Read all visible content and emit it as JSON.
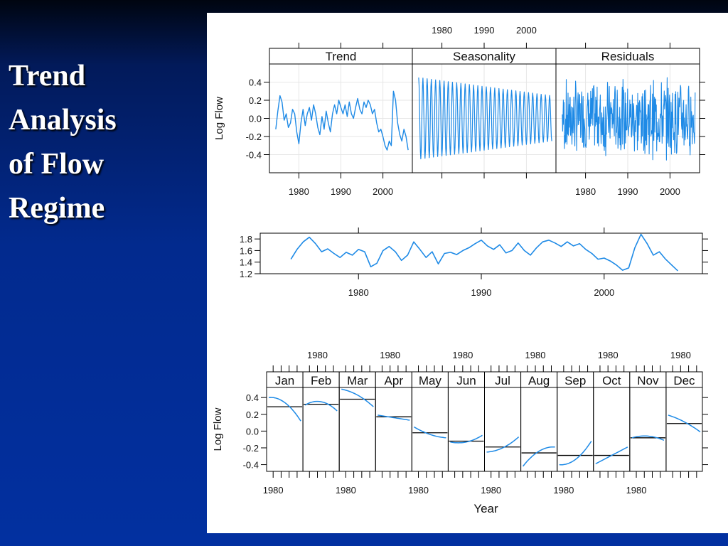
{
  "slide": {
    "title_lines": [
      "Trend",
      "Analysis",
      "of  Flow",
      "Regime"
    ]
  },
  "colors": {
    "series": "#1e8ae6",
    "panel_border": "#000000",
    "strip_bg": "#ffffff",
    "grid": "#e6e6e6",
    "slide_bg": "#0230a0"
  },
  "chart_data": [
    {
      "type": "line",
      "panels": [
        "Trend",
        "Seasonality",
        "Residuals"
      ],
      "ylabel": "Log Flow",
      "yticks": [
        "0.4",
        "0.2",
        "0.0",
        "-0.2",
        "-0.4"
      ],
      "ylim": [
        -0.6,
        0.6
      ],
      "xlim": [
        1973,
        2007
      ],
      "xticks": [
        "1980",
        "1990",
        "2000"
      ],
      "grid": true,
      "series": [
        {
          "panel": "Trend",
          "x": [
            1974.5,
            1975,
            1975.5,
            1976,
            1976.5,
            1977,
            1977.5,
            1978,
            1978.5,
            1979,
            1979.5,
            1980,
            1980.5,
            1981,
            1981.5,
            1982,
            1982.5,
            1983,
            1983.5,
            1984,
            1984.5,
            1985,
            1985.5,
            1986,
            1986.5,
            1987,
            1987.5,
            1988,
            1988.5,
            1989,
            1989.5,
            1990,
            1990.5,
            1991,
            1991.5,
            1992,
            1992.5,
            1993,
            1993.5,
            1994,
            1994.5,
            1995,
            1995.5,
            1996,
            1996.5,
            1997,
            1997.5,
            1998,
            1998.5,
            1999,
            1999.5,
            2000,
            2000.5,
            2001,
            2001.5,
            2002,
            2002.5,
            2003,
            2003.5,
            2004,
            2004.5,
            2005,
            2005.5,
            2006
          ],
          "values": [
            -0.12,
            0.08,
            0.25,
            0.18,
            -0.02,
            0.05,
            -0.1,
            -0.05,
            0.1,
            0.05,
            -0.15,
            -0.28,
            -0.05,
            0.1,
            -0.08,
            0.05,
            0.12,
            -0.02,
            0.15,
            0.05,
            -0.1,
            -0.18,
            0.02,
            -0.12,
            0.08,
            -0.05,
            -0.15,
            0.05,
            0.15,
            0.05,
            0.2,
            0.12,
            0.05,
            0.15,
            0.02,
            0.18,
            0.05,
            0.0,
            0.12,
            0.22,
            0.1,
            0.05,
            0.18,
            0.12,
            0.2,
            0.15,
            0.05,
            0.1,
            -0.05,
            -0.15,
            -0.12,
            -0.2,
            -0.3,
            -0.35,
            -0.25,
            -0.3,
            0.3,
            0.2,
            -0.05,
            -0.18,
            -0.25,
            -0.12,
            -0.2,
            -0.35
          ]
        },
        {
          "panel": "Seasonality",
          "x": [
            1974.5,
            2006
          ],
          "values": [
            0.45,
            -0.42
          ],
          "note": "annual oscillation, amplitude shrinking from about 0.45 to 0.25"
        },
        {
          "panel": "Residuals",
          "x": [
            1974.5,
            2006
          ],
          "values": [
            0.5,
            -0.55
          ],
          "note": "noisy residual series within about +/-0.5"
        }
      ]
    },
    {
      "type": "line",
      "yticks": [
        "1.8",
        "1.6",
        "1.4",
        "1.2"
      ],
      "ylim": [
        1.2,
        1.9
      ],
      "xlim": [
        1972,
        2008
      ],
      "xticks": [
        "1980",
        "1990",
        "2000"
      ],
      "series": [
        {
          "x": [
            1974.5,
            1975,
            1975.5,
            1976,
            1976.5,
            1977,
            1977.5,
            1978,
            1978.5,
            1979,
            1979.5,
            1980,
            1980.5,
            1981,
            1981.5,
            1982,
            1982.5,
            1983,
            1983.5,
            1984,
            1984.5,
            1985,
            1985.5,
            1986,
            1986.5,
            1987,
            1987.5,
            1988,
            1988.5,
            1989,
            1989.5,
            1990,
            1990.5,
            1991,
            1991.5,
            1992,
            1992.5,
            1993,
            1993.5,
            1994,
            1994.5,
            1995,
            1995.5,
            1996,
            1996.5,
            1997,
            1997.5,
            1998,
            1998.5,
            1999,
            1999.5,
            2000,
            2000.5,
            2001,
            2001.5,
            2002,
            2002.5,
            2003,
            2003.5,
            2004,
            2004.5,
            2005,
            2005.5,
            2006
          ],
          "values": [
            1.45,
            1.62,
            1.75,
            1.83,
            1.72,
            1.58,
            1.63,
            1.55,
            1.48,
            1.57,
            1.52,
            1.62,
            1.58,
            1.32,
            1.38,
            1.6,
            1.67,
            1.58,
            1.43,
            1.52,
            1.75,
            1.62,
            1.48,
            1.58,
            1.37,
            1.55,
            1.57,
            1.53,
            1.6,
            1.65,
            1.72,
            1.78,
            1.68,
            1.62,
            1.7,
            1.56,
            1.6,
            1.73,
            1.6,
            1.52,
            1.65,
            1.75,
            1.78,
            1.73,
            1.67,
            1.75,
            1.68,
            1.72,
            1.62,
            1.55,
            1.45,
            1.47,
            1.42,
            1.35,
            1.26,
            1.3,
            1.65,
            1.88,
            1.72,
            1.52,
            1.58,
            1.45,
            1.35,
            1.25
          ]
        }
      ]
    },
    {
      "type": "line",
      "panels": [
        "Jan",
        "Feb",
        "Mar",
        "Apr",
        "May",
        "Jun",
        "Jul",
        "Aug",
        "Sep",
        "Oct",
        "Nov",
        "Dec"
      ],
      "ylabel": "Log Flow",
      "xlabel": "Year",
      "yticks": [
        "0.4",
        "0.2",
        "0.0",
        "-0.2",
        "-0.4"
      ],
      "ylim": [
        -0.48,
        0.52
      ],
      "xlim": [
        1973,
        2007
      ],
      "xtick_label": "1980",
      "grid": false,
      "monthly_means": [
        0.29,
        0.32,
        0.38,
        0.17,
        -0.02,
        -0.12,
        -0.19,
        -0.26,
        -0.29,
        -0.29,
        -0.08,
        0.09
      ],
      "curve_start": [
        0.4,
        0.31,
        0.5,
        0.19,
        0.05,
        -0.13,
        -0.25,
        -0.42,
        -0.4,
        -0.39,
        -0.08,
        0.19
      ],
      "curve_mid": [
        0.34,
        0.35,
        0.43,
        0.16,
        -0.04,
        -0.13,
        -0.2,
        -0.24,
        -0.34,
        -0.29,
        -0.06,
        0.11
      ],
      "curve_end": [
        0.12,
        0.24,
        0.29,
        0.13,
        -0.08,
        -0.05,
        -0.07,
        -0.19,
        -0.12,
        -0.19,
        -0.11,
        -0.01
      ]
    }
  ]
}
